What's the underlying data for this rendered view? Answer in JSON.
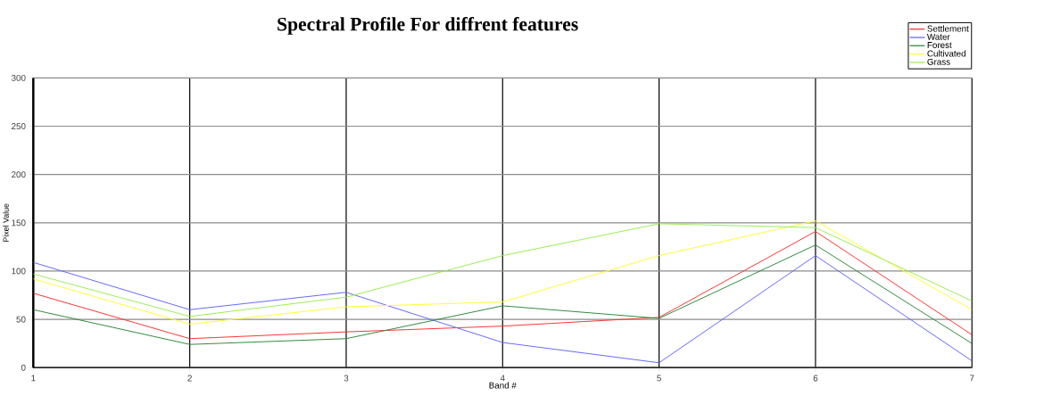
{
  "chart_data": {
    "type": "line",
    "title": "Spectral Profile For diffrent features",
    "xlabel": "Band #",
    "ylabel": "Pixel Value",
    "x": [
      1,
      2,
      3,
      4,
      5,
      6,
      7
    ],
    "xlim": [
      1,
      7
    ],
    "xticks": [
      1,
      2,
      3,
      4,
      5,
      6,
      7
    ],
    "ylim": [
      0,
      300
    ],
    "yticks": [
      0,
      50,
      100,
      150,
      200,
      250,
      300
    ],
    "grid": true,
    "legend": "top right",
    "marker": "none",
    "line_style": "solid",
    "series": [
      {
        "name": "Settlement",
        "color": "#ff3333",
        "values": [
          77,
          30,
          37,
          43,
          52,
          141,
          34
        ]
      },
      {
        "name": "Water",
        "color": "#6666ff",
        "values": [
          109,
          60,
          78,
          26,
          5,
          116,
          7
        ]
      },
      {
        "name": "Forest",
        "color": "#2e8b3a",
        "values": [
          60,
          24,
          30,
          64,
          51,
          127,
          25
        ]
      },
      {
        "name": "Cultivated",
        "color": "#ffff33",
        "values": [
          92,
          45,
          63,
          68,
          116,
          152,
          60
        ]
      },
      {
        "name": "Grass",
        "color": "#99ee55",
        "values": [
          97,
          53,
          73,
          116,
          149,
          145,
          69
        ]
      }
    ]
  }
}
